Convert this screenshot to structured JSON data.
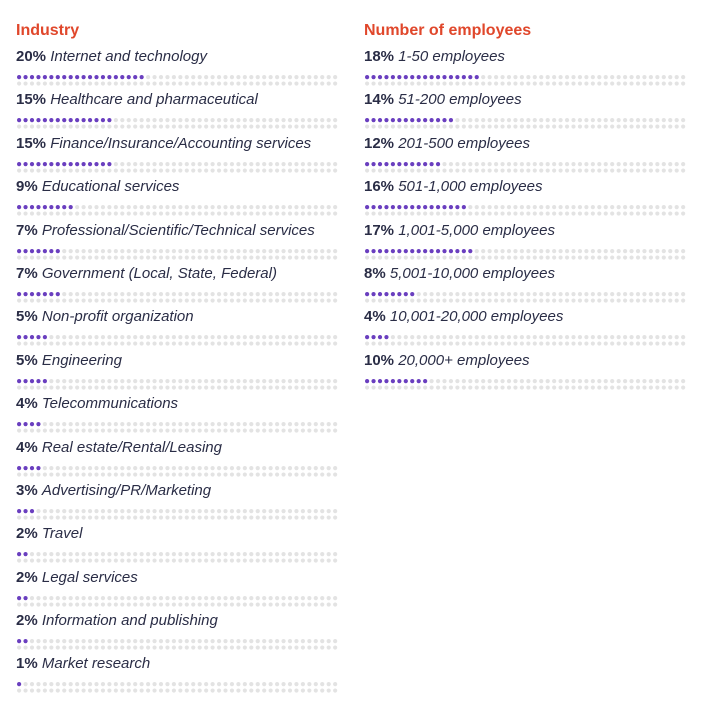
{
  "colors": {
    "heading": "#e0472b",
    "label": "#2a2d46",
    "dot_filled": "#6a3fbf",
    "dot_empty": "#e3e3e3"
  },
  "industry": {
    "title": "Industry"
  },
  "employees": {
    "title": "Number of employees"
  },
  "chart_data": [
    {
      "type": "bar",
      "title": "Industry",
      "value_unit": "%",
      "dot_total": 50,
      "rows": [
        {
          "pct_label": "20%",
          "name": "Internet and technology",
          "value": 20,
          "dots": 20
        },
        {
          "pct_label": "15%",
          "name": "Healthcare and pharmaceutical",
          "value": 15,
          "dots": 15
        },
        {
          "pct_label": "15%",
          "name": "Finance/Insurance/Accounting services",
          "value": 15,
          "dots": 15
        },
        {
          "pct_label": "9%",
          "name": "Educational services",
          "value": 9,
          "dots": 9
        },
        {
          "pct_label": "7%",
          "name": "Professional/Scientific/Technical services",
          "value": 7,
          "dots": 7
        },
        {
          "pct_label": "7%",
          "name": "Government (Local, State, Federal)",
          "value": 7,
          "dots": 7
        },
        {
          "pct_label": "5%",
          "name": "Non-profit organization",
          "value": 5,
          "dots": 5
        },
        {
          "pct_label": "5%",
          "name": "Engineering",
          "value": 5,
          "dots": 5
        },
        {
          "pct_label": "4%",
          "name": "Telecommunications",
          "value": 4,
          "dots": 4
        },
        {
          "pct_label": "4%",
          "name": "Real estate/Rental/Leasing",
          "value": 4,
          "dots": 4
        },
        {
          "pct_label": "3%",
          "name": "Advertising/PR/Marketing",
          "value": 3,
          "dots": 3
        },
        {
          "pct_label": "2%",
          "name": "Travel",
          "value": 2,
          "dots": 2
        },
        {
          "pct_label": "2%",
          "name": "Legal services",
          "value": 2,
          "dots": 2
        },
        {
          "pct_label": "2%",
          "name": "Information and publishing",
          "value": 2,
          "dots": 2
        },
        {
          "pct_label": "1%",
          "name": "Market research",
          "value": 1,
          "dots": 1
        }
      ]
    },
    {
      "type": "bar",
      "title": "Number of employees",
      "value_unit": "%",
      "dot_total": 50,
      "rows": [
        {
          "pct_label": "18%",
          "name": "1-50 employees",
          "value": 18,
          "dots": 18
        },
        {
          "pct_label": "14%",
          "name": "51-200 employees",
          "value": 14,
          "dots": 14
        },
        {
          "pct_label": "12%",
          "name": "201-500 employees",
          "value": 12,
          "dots": 12
        },
        {
          "pct_label": "16%",
          "name": "501-1,000 employees",
          "value": 16,
          "dots": 16
        },
        {
          "pct_label": "17%",
          "name": "1,001-5,000 employees",
          "value": 17,
          "dots": 17
        },
        {
          "pct_label": "8%",
          "name": "5,001-10,000 employees",
          "value": 8,
          "dots": 8
        },
        {
          "pct_label": "4%",
          "name": "10,001-20,000 employees",
          "value": 4,
          "dots": 4
        },
        {
          "pct_label": "10%",
          "name": "20,000+ employees",
          "value": 10,
          "dots": 10
        }
      ]
    }
  ]
}
